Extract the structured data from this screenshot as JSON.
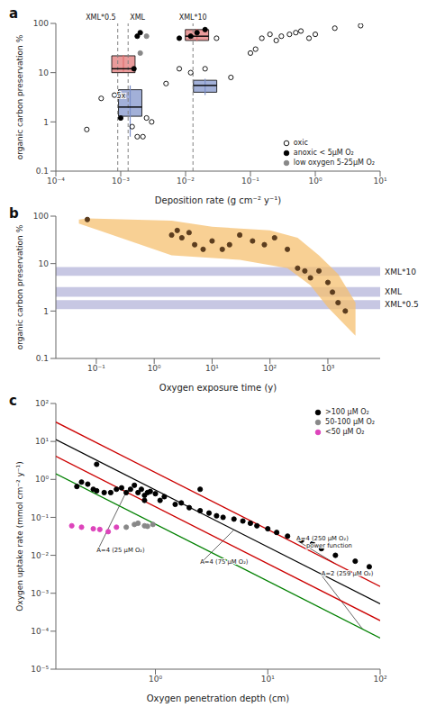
{
  "chart_data": [
    {
      "type": "scatter",
      "title": "a",
      "x_label": "Deposition rate (g cm⁻² y⁻¹)",
      "y_label": "organic carbon preservation %",
      "log": true,
      "grid": false,
      "legend": "lower right",
      "xlim": [
        0.0001,
        10
      ],
      "ylim": [
        0.1,
        100
      ],
      "xticks": [
        {
          "value": 0.0001,
          "label": "10⁻⁴"
        },
        {
          "value": 0.001,
          "label": "10⁻³"
        },
        {
          "value": 0.01,
          "label": "10⁻²"
        },
        {
          "value": 0.1,
          "label": "10⁻¹"
        },
        {
          "value": 1,
          "label": "10⁰"
        },
        {
          "value": 10,
          "label": "10¹"
        }
      ],
      "yticks": [
        0.1,
        1,
        10,
        100
      ],
      "series": [
        {
          "name": "oxic",
          "color": "black",
          "marker": "circle_open",
          "x": [
            0.0003,
            0.0005,
            0.0008,
            0.0015,
            0.0018,
            0.0022,
            0.0025,
            0.003,
            0.005,
            0.008,
            0.012,
            0.02,
            0.03,
            0.05,
            0.1,
            0.12,
            0.15,
            0.2,
            0.25,
            0.3,
            0.4,
            0.5,
            0.6,
            0.8,
            1.0,
            2.0,
            5.0
          ],
          "values": [
            0.7,
            3.0,
            3.5,
            0.8,
            0.5,
            0.5,
            1.2,
            1.0,
            6.0,
            12.0,
            10.0,
            12.0,
            50.0,
            8.0,
            25.0,
            30.0,
            50.0,
            60.0,
            45.0,
            55.0,
            60.0,
            65.0,
            70.0,
            50.0,
            60.0,
            80.0,
            90.0
          ]
        },
        {
          "name": "anoxic < 5μM O₂",
          "color": "black",
          "marker": "circle",
          "x": [
            0.001,
            0.0016,
            0.0018,
            0.002,
            0.008,
            0.012,
            0.015,
            0.02
          ],
          "values": [
            1.2,
            12.0,
            55.0,
            65.0,
            50.0,
            55.0,
            65.0,
            75.0
          ]
        },
        {
          "name": "low oxygen 5-25μM O₂",
          "color": "#888888",
          "marker": "circle",
          "x": [
            0.002,
            0.0025
          ],
          "values": [
            25.0,
            55.0
          ]
        }
      ],
      "boxes": [
        {
          "x": 0.0011,
          "median": 12.0,
          "q1": 10.0,
          "q3": 22.0,
          "whisker_low": 10.5,
          "whisker_high": 23.0,
          "color": "#E07070"
        },
        {
          "x": 0.015,
          "median": 55.0,
          "q1": 45.0,
          "q3": 75.0,
          "whisker_low": 44.0,
          "whisker_high": 78.0,
          "color": "#E07070"
        },
        {
          "x": 0.0014,
          "median": 2.0,
          "q1": 1.3,
          "q3": 4.5,
          "whisker_low": 0.5,
          "whisker_high": 5.5,
          "color": "#7B8EC8"
        },
        {
          "x": 0.02,
          "median": 5.5,
          "q1": 4.0,
          "q3": 7.0,
          "whisker_low": 3.5,
          "whisker_high": 7.5,
          "color": "#7B8EC8"
        }
      ],
      "reference_lines": [
        {
          "x": 0.0009,
          "label": "XML*0.5"
        },
        {
          "x": 0.0013,
          "label": "XML"
        },
        {
          "x": 0.013,
          "label": "XML*10"
        }
      ],
      "annotations": [
        {
          "text": "5x",
          "x": 0.00119,
          "y": 3.0
        }
      ]
    },
    {
      "type": "scatter",
      "title": "b",
      "x_label": "Oxygen exposure time (y)",
      "y_label": "organic carbon preservation %",
      "log": true,
      "grid": false,
      "xlim": [
        0.02,
        8000
      ],
      "ylim": [
        0.1,
        100
      ],
      "xticks": [
        {
          "value": 0.1,
          "label": "10⁻¹"
        },
        {
          "value": 1,
          "label": "10⁰"
        },
        {
          "value": 10,
          "label": "10¹"
        },
        {
          "value": 100,
          "label": "10²"
        },
        {
          "value": 1000,
          "label": "10³"
        }
      ],
      "yticks": [
        0.1,
        1,
        10,
        100
      ],
      "series": [
        {
          "color": "#5C3D1E",
          "marker": "circle",
          "x": [
            0.07,
            2.0,
            2.5,
            3.0,
            4.0,
            5.0,
            7.0,
            10.0,
            15.0,
            20.0,
            30.0,
            50.0,
            80.0,
            120.0,
            200.0,
            300.0,
            400.0,
            500.0,
            700.0,
            1000.0,
            1200.0,
            1500.0,
            2000.0
          ],
          "values": [
            85.0,
            40.0,
            50.0,
            35.0,
            45.0,
            25.0,
            20.0,
            30.0,
            20.0,
            25.0,
            40.0,
            30.0,
            25.0,
            35.0,
            20.0,
            8.0,
            7.0,
            5.0,
            7.0,
            4.0,
            2.5,
            1.5,
            1.0
          ]
        }
      ],
      "envelope": {
        "color": "#F5C070",
        "top_x": [
          0.05,
          0.07,
          2.0,
          10.0,
          100.0,
          300.0,
          700.0,
          1500.0,
          3000.0
        ],
        "top_y": [
          85.0,
          90.0,
          80.0,
          60.0,
          50.0,
          35.0,
          15.0,
          6.0,
          1.5
        ],
        "bottom_x": [
          0.05,
          2.0,
          30.0,
          200.0,
          500.0,
          1000.0,
          2000.0,
          3000.0
        ],
        "bottom_y": [
          70.0,
          15.0,
          12.0,
          8.0,
          3.5,
          1.2,
          0.5,
          0.3
        ]
      },
      "bands": [
        {
          "label": "XML*10",
          "range": [
            5.5,
            8.5
          ],
          "color": "#9999CC"
        },
        {
          "label": "XML",
          "range": [
            2.0,
            3.2
          ],
          "color": "#9999CC"
        },
        {
          "label": "XML*0.5",
          "range": [
            1.1,
            1.7
          ],
          "color": "#9999CC"
        }
      ]
    },
    {
      "type": "scatter",
      "title": "c",
      "x_label": "Oxygen penetration depth (cm)",
      "y_label": "Oxygen uptake rate (mmol cm⁻² y⁻¹)",
      "log": true,
      "grid": false,
      "legend": "upper right",
      "xlim": [
        0.13,
        100
      ],
      "ylim": [
        1e-05,
        100
      ],
      "xticks": [
        {
          "value": 1,
          "label": "10⁰"
        },
        {
          "value": 10,
          "label": "10¹"
        },
        {
          "value": 100,
          "label": "10²"
        }
      ],
      "yticks": [
        {
          "value": 1e-05,
          "label": "10⁻⁵"
        },
        {
          "value": 0.0001,
          "label": "10⁻⁴"
        },
        {
          "value": 0.001,
          "label": "10⁻³"
        },
        {
          "value": 0.01,
          "label": "10⁻²"
        },
        {
          "value": 0.1,
          "label": "10⁻¹"
        },
        {
          "value": 1,
          "label": "10⁰"
        },
        {
          "value": 10,
          "label": "10¹"
        },
        {
          "value": 100,
          "label": "10²"
        }
      ],
      "lines": [
        {
          "color": "#CC0000",
          "x": [
            0.13,
            100
          ],
          "values": [
            32.291,
            0.00151356
          ]
        },
        {
          "color": "#CC0000",
          "x": [
            0.13,
            100
          ],
          "values": [
            4.0652,
            0.000190546
          ]
        },
        {
          "color": "green",
          "x": [
            0.13,
            100
          ],
          "values": [
            1.40955,
            6.60693e-05
          ]
        },
        {
          "color": "black",
          "x": [
            0.13,
            100
          ],
          "values": [
            11.1965,
            0.000524807
          ]
        }
      ],
      "series": [
        {
          "name": ">100 μM O₂",
          "color": "black",
          "marker": "circle",
          "x": [
            0.2,
            0.22,
            0.25,
            0.28,
            0.3,
            0.35,
            0.4,
            0.45,
            0.5,
            0.55,
            0.6,
            0.65,
            0.7,
            0.75,
            0.8,
            0.85,
            0.9,
            1.0,
            1.1,
            1.2,
            1.5,
            1.7,
            2.0,
            2.5,
            3.0,
            3.5,
            4.0,
            5.0,
            6.0,
            7.0,
            8.0,
            10.0,
            12.0,
            15.0,
            20.0,
            25.0,
            30.0,
            40.0,
            60.0,
            80.0,
            0.3,
            0.8,
            2.5
          ],
          "values": [
            0.65,
            0.85,
            0.75,
            0.55,
            0.5,
            0.45,
            0.45,
            0.55,
            0.6,
            0.45,
            0.55,
            0.7,
            0.45,
            0.55,
            0.38,
            0.45,
            0.48,
            0.42,
            0.28,
            0.35,
            0.22,
            0.24,
            0.18,
            0.15,
            0.13,
            0.11,
            0.1,
            0.09,
            0.08,
            0.07,
            0.06,
            0.05,
            0.04,
            0.032,
            0.025,
            0.02,
            0.015,
            0.01,
            0.007,
            0.005,
            2.5,
            0.28,
            0.55
          ]
        },
        {
          "name": "50-100 μM O₂",
          "color": "#888888",
          "marker": "circle",
          "x": [
            0.55,
            0.65,
            0.7,
            0.8,
            0.85,
            0.95
          ],
          "values": [
            0.055,
            0.065,
            0.07,
            0.06,
            0.058,
            0.065
          ]
        },
        {
          "name": "<50 μM O₂",
          "color": "#DD44BB",
          "marker": "circle",
          "x": [
            0.18,
            0.22,
            0.28,
            0.32,
            0.38,
            0.45
          ],
          "values": [
            0.06,
            0.055,
            0.05,
            0.048,
            0.042,
            0.055
          ]
        }
      ],
      "annotations": [
        {
          "text": "A=4 (25 μM O₂)",
          "x": 0.3,
          "y": 0.012,
          "target": [
            0.55,
            0.46715
          ]
        },
        {
          "text": "A=4 (75 μM O₂)",
          "x": 2.5,
          "y": 0.006,
          "target": [
            5.0,
            0.04694
          ]
        },
        {
          "text": "A=4 (250 μM O₂)",
          "x": 18,
          "y": 0.025,
          "target": [
            40,
            0.0059829
          ]
        },
        {
          "text": "power function",
          "x": 22,
          "y": 0.016
        },
        {
          "text": "A=2 (259 μM O₂)",
          "x": 30,
          "y": 0.003,
          "target": [
            70,
            0.00011281
          ]
        }
      ]
    }
  ]
}
